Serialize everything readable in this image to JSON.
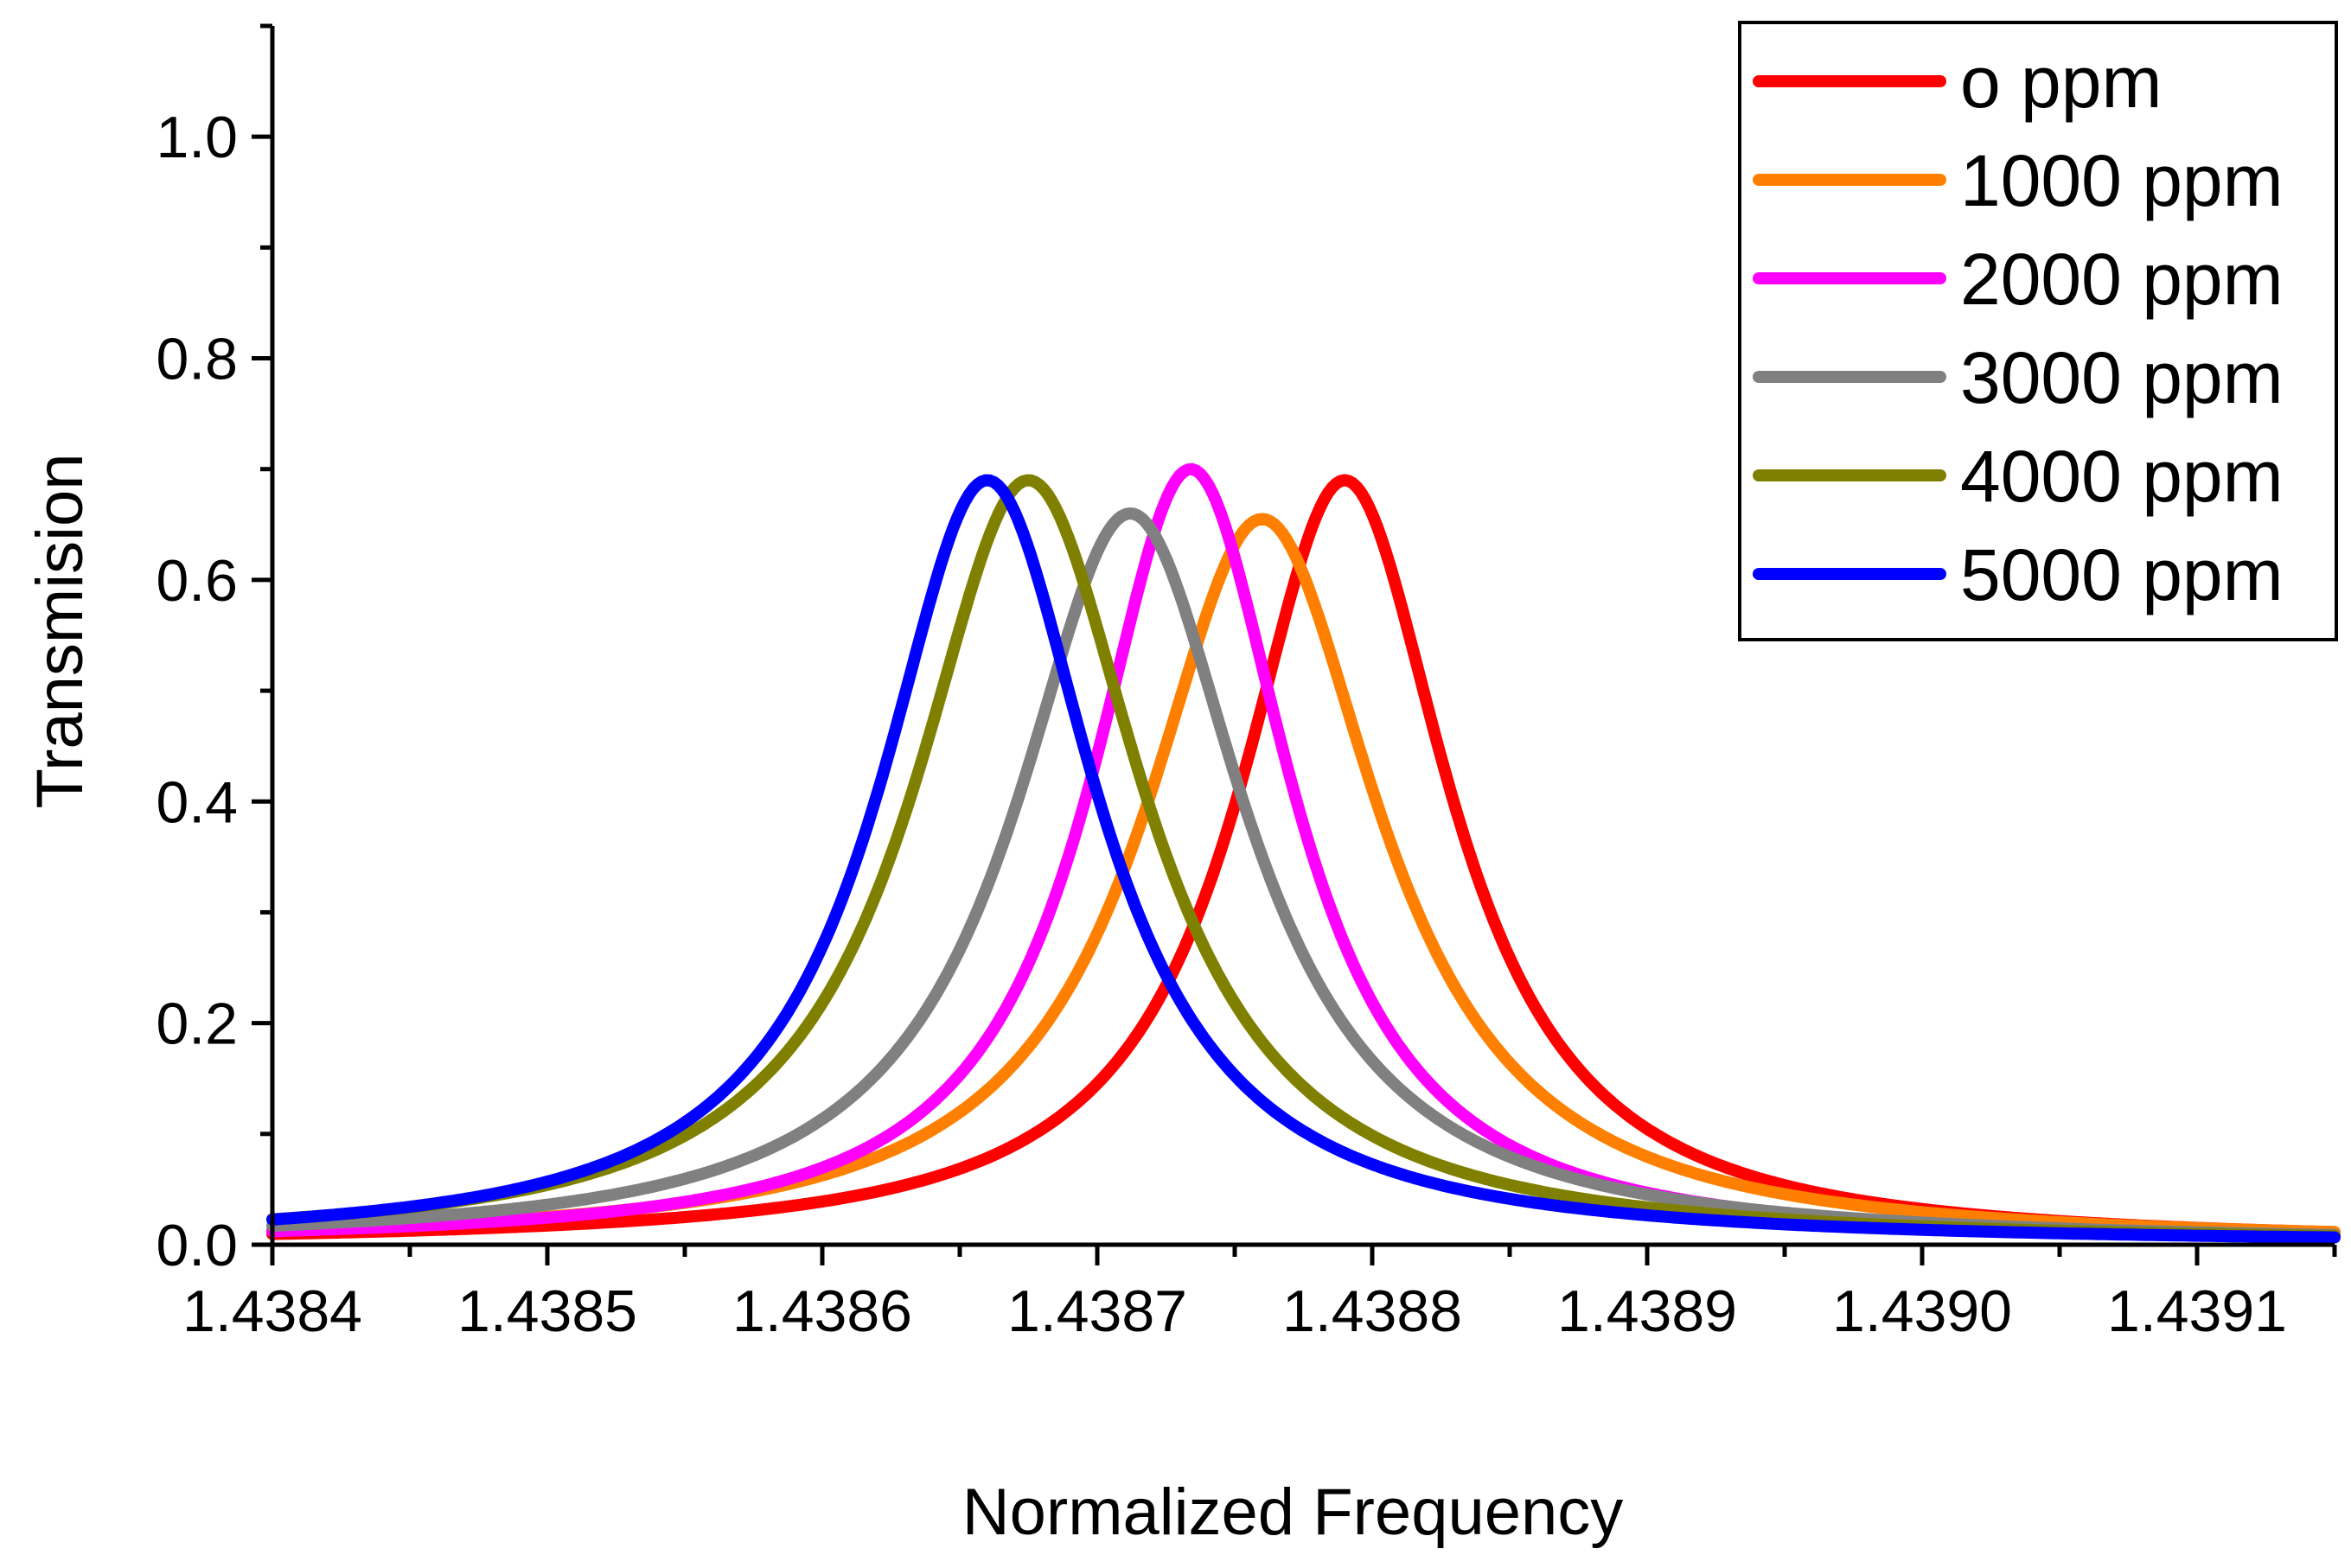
{
  "chart_data": {
    "type": "line",
    "title": "",
    "xlabel": "Normalized Frequency",
    "ylabel": "Transmision",
    "xlim": [
      1.4384,
      1.43915
    ],
    "ylim": [
      0.0,
      1.1
    ],
    "xticks": [
      1.4384,
      1.4385,
      1.4386,
      1.4387,
      1.4388,
      1.4389,
      1.439,
      1.4391
    ],
    "xtick_labels": [
      "1.4384",
      "1.4385",
      "1.4386",
      "1.4387",
      "1.4388",
      "1.4389",
      "1.4390",
      "1.4391"
    ],
    "yticks": [
      0.0,
      0.2,
      0.4,
      0.6,
      0.8,
      1.0
    ],
    "ytick_labels": [
      "0.0",
      "0.2",
      "0.4",
      "0.6",
      "0.8",
      "1.0"
    ],
    "grid": false,
    "legend_position": "top-right",
    "series": [
      {
        "name": "o ppm",
        "color": "#ff0000",
        "peak_x": 1.43879,
        "peak_y": 0.69,
        "hwhm": 4.65e-05
      },
      {
        "name": "1000 ppm",
        "color": "#ff8000",
        "peak_x": 1.43876,
        "peak_y": 0.655,
        "hwhm": 5.2e-05
      },
      {
        "name": "2000 ppm",
        "color": "#ff00ff",
        "peak_x": 1.438734,
        "peak_y": 0.7,
        "hwhm": 4.45e-05
      },
      {
        "name": "3000 ppm",
        "color": "#808080",
        "peak_x": 1.438712,
        "peak_y": 0.66,
        "hwhm": 5.1e-05
      },
      {
        "name": "4000 ppm",
        "color": "#808000",
        "peak_x": 1.438675,
        "peak_y": 0.69,
        "hwhm": 5.1e-05
      },
      {
        "name": "5000 ppm",
        "color": "#0000ff",
        "peak_x": 1.43866,
        "peak_y": 0.69,
        "hwhm": 4.8e-05
      }
    ]
  }
}
